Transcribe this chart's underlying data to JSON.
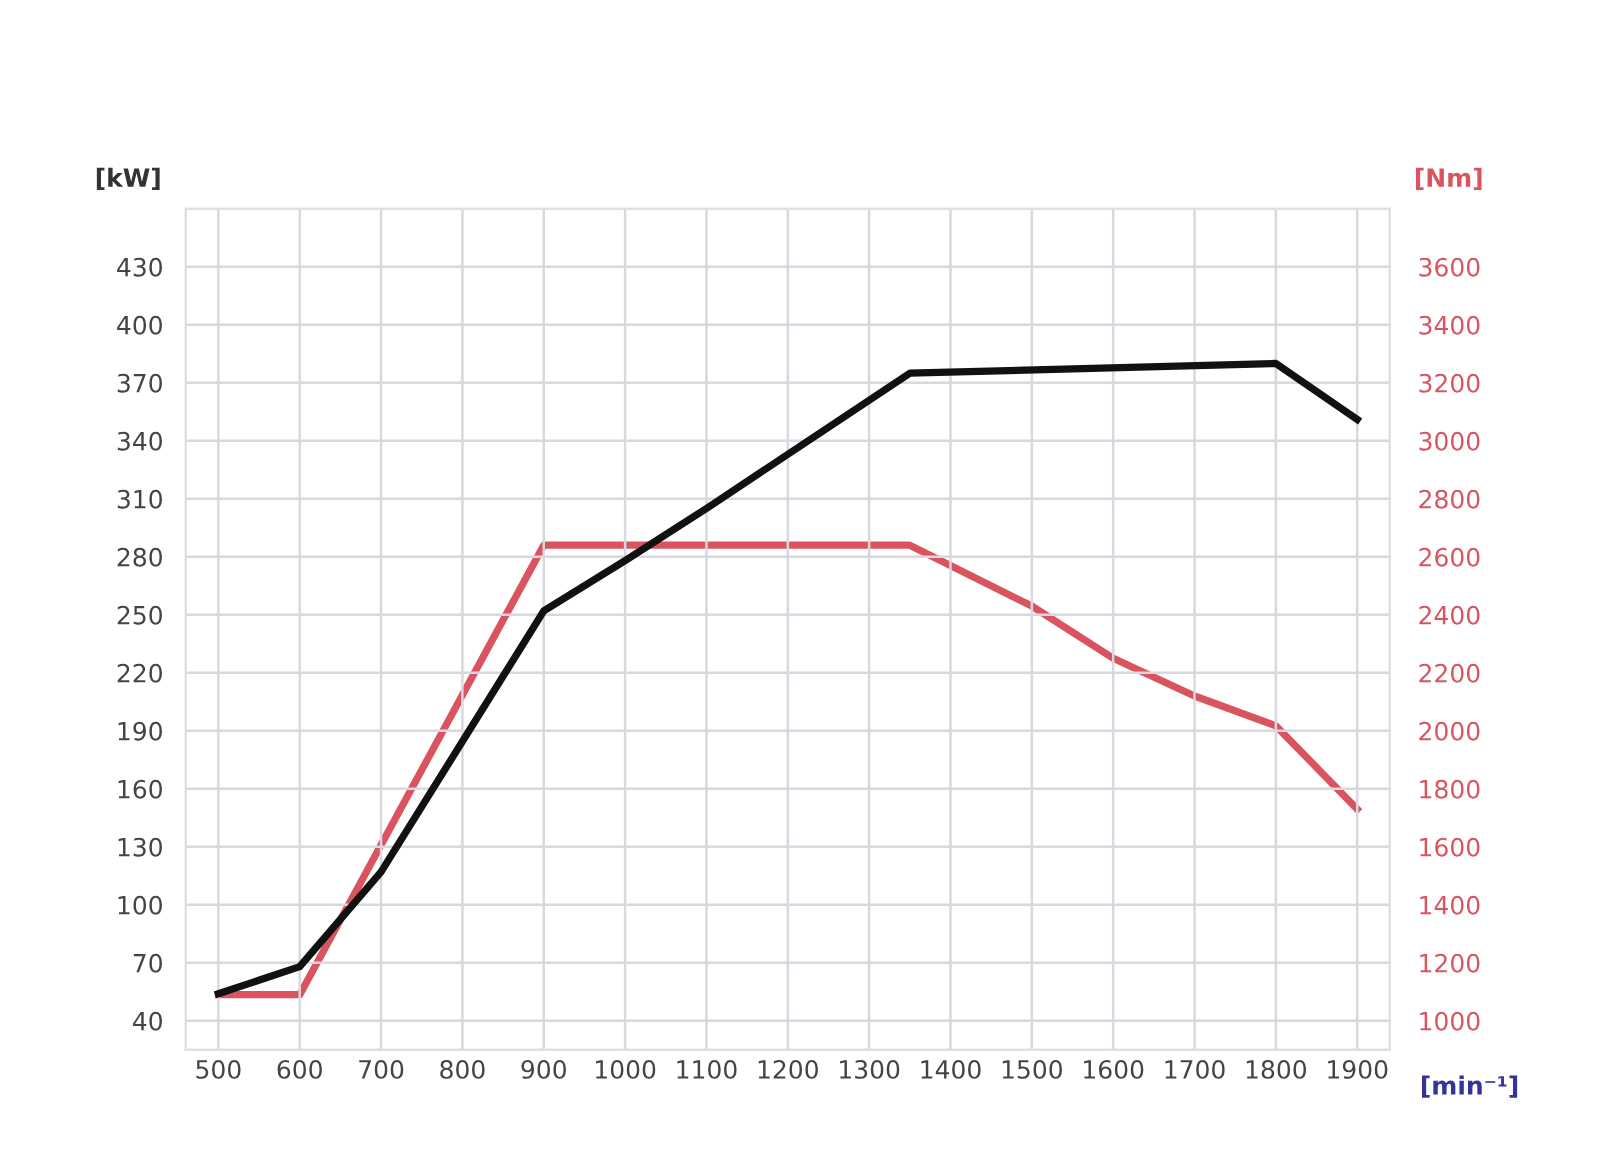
{
  "chart_data": {
    "type": "line",
    "ylabel": "[kW]",
    "y2label": "[Nm]",
    "xlabel": "[min⁻¹]",
    "xlim": [
      460,
      1940
    ],
    "xticks": [
      500,
      600,
      700,
      800,
      900,
      1000,
      1100,
      1200,
      1300,
      1400,
      1500,
      1600,
      1700,
      1800,
      1900
    ],
    "ylim": [
      25,
      460
    ],
    "yticks": [
      40,
      70,
      100,
      130,
      160,
      190,
      220,
      250,
      280,
      310,
      340,
      370,
      400,
      430
    ],
    "y2lim": [
      900,
      3800
    ],
    "y2ticks": [
      1000,
      1200,
      1400,
      1600,
      1800,
      2000,
      2200,
      2400,
      2600,
      2800,
      3000,
      3200,
      3400,
      3600
    ],
    "grid": true,
    "line_style": "solid",
    "series": [
      {
        "color": "#111111",
        "x": [
          500,
          600,
          700,
          900,
          1000,
          1100,
          1350,
          1800,
          1900
        ],
        "values": [
          54,
          68,
          117,
          252,
          278,
          305,
          375,
          380,
          351
        ]
      },
      {
        "color": "#d9545f",
        "axis": "y2",
        "x": [
          500,
          600,
          900,
          1350,
          1500,
          1600,
          1700,
          1800,
          1900
        ],
        "values": [
          1090,
          1090,
          2640,
          2640,
          2430,
          2250,
          2120,
          2017,
          1730
        ]
      }
    ]
  }
}
